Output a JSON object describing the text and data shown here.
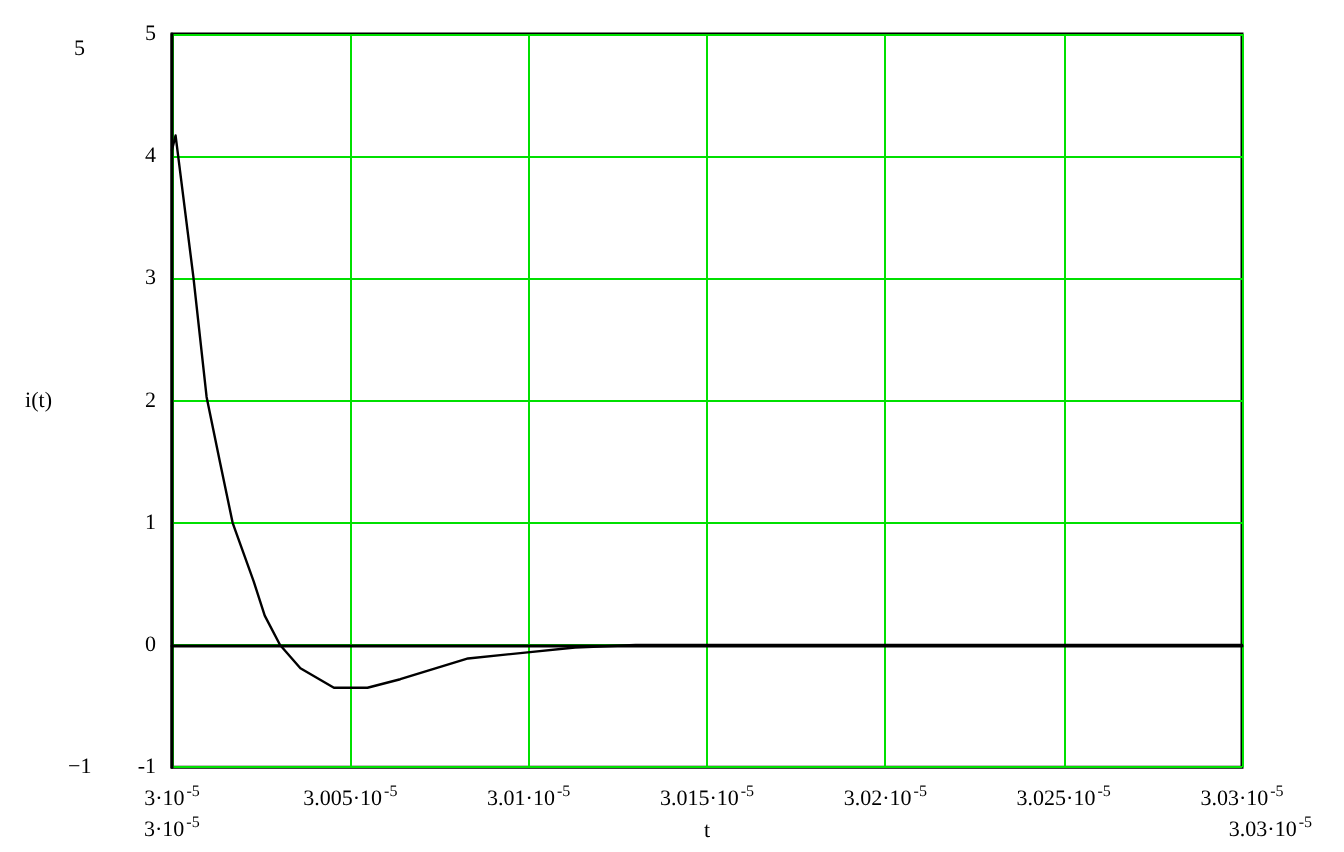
{
  "chart_data": {
    "type": "line",
    "xlabel": "t",
    "ylabel": "i(t)",
    "x": [
      3e-05,
      3.0001e-05,
      3.0006e-05,
      3.00097e-05,
      3.00135e-05,
      3.0017e-05,
      3.00229e-05,
      3.0026e-05,
      3.00303e-05,
      3.0036e-05,
      3.00454e-05,
      3.00548e-05,
      3.0064e-05,
      3.0083e-05,
      3.00997e-05,
      3.0113e-05,
      3.013e-05,
      3.03e-05
    ],
    "series": [
      {
        "color": "#000000",
        "values": [
          4.05,
          4.17,
          3.01,
          2.03,
          1.49,
          1.0,
          0.52,
          0.24,
          0.0,
          -0.19,
          -0.35,
          -0.35,
          -0.28,
          -0.11,
          -0.06,
          -0.02,
          0.0,
          0.0
        ]
      }
    ],
    "xlim": [
      3e-05,
      3.03e-05
    ],
    "xticks": [
      {
        "value": 3e-05,
        "label": "3·10$^{-5}$"
      },
      {
        "value": 3.005e-05,
        "label": "3.005·10$^{-5}$"
      },
      {
        "value": 3.01e-05,
        "label": "3.01·10$^{-5}$"
      },
      {
        "value": 3.015e-05,
        "label": "3.015·10$^{-5}$"
      },
      {
        "value": 3.02e-05,
        "label": "3.02·10$^{-5}$"
      },
      {
        "value": 3.025e-05,
        "label": "3.025·10$^{-5}$"
      },
      {
        "value": 3.03e-05,
        "label": "3.03·10$^{-5}$"
      }
    ],
    "ylim": [
      -1,
      5
    ],
    "yticks": [
      -1,
      0,
      1,
      2,
      3,
      4,
      5
    ],
    "grid": true,
    "marker": "none",
    "line_style": "solid",
    "annotations": [
      "5",
      "−1",
      "3·10$^{-5}$",
      "3.03·10$^{-5}$"
    ]
  }
}
